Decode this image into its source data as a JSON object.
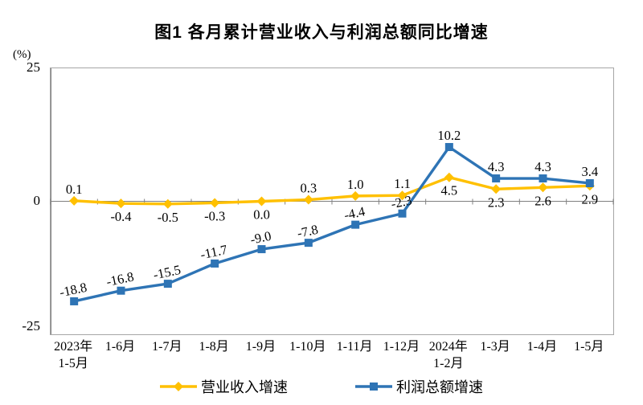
{
  "title": "图1  各月累计营业收入与利润总额同比增速",
  "y_axis": {
    "unit": "(%)",
    "tick_top": "25",
    "tick_zero": "0",
    "tick_bottom": "-25"
  },
  "chart_data": {
    "type": "line",
    "title": "图1 各月累计营业收入与利润总额同比增速",
    "categories": [
      "2023年1-5月",
      "1-6月",
      "1-7月",
      "1-8月",
      "1-9月",
      "1-10月",
      "1-11月",
      "1-12月",
      "2024年1-2月",
      "1-3月",
      "1-4月",
      "1-5月"
    ],
    "category_lines": [
      [
        "2023年",
        "1-5月"
      ],
      [
        "1-6月"
      ],
      [
        "1-7月"
      ],
      [
        "1-8月"
      ],
      [
        "1-9月"
      ],
      [
        "1-10月"
      ],
      [
        "1-11月"
      ],
      [
        "1-12月"
      ],
      [
        "2024年",
        "1-2月"
      ],
      [
        "1-3月"
      ],
      [
        "1-4月"
      ],
      [
        "1-5月"
      ]
    ],
    "series": [
      {
        "name": "营业收入增速",
        "color": "#FFC000",
        "marker": "diamond",
        "values": [
          0.1,
          -0.4,
          -0.5,
          -0.3,
          0.0,
          0.3,
          1.0,
          1.1,
          4.5,
          2.3,
          2.6,
          2.9
        ]
      },
      {
        "name": "利润总额增速",
        "color": "#2E74B5",
        "marker": "square",
        "values": [
          -18.8,
          -16.8,
          -15.5,
          -11.7,
          -9.0,
          -7.8,
          -4.4,
          -2.3,
          10.2,
          4.3,
          4.3,
          3.4
        ]
      }
    ],
    "ylabel": "(%)",
    "ylim": [
      -25,
      25
    ],
    "yticks": [
      25,
      0,
      -25
    ],
    "grid": false,
    "legend_position": "bottom",
    "axis_color": "#808080",
    "border_color": "#a6a6a6"
  }
}
